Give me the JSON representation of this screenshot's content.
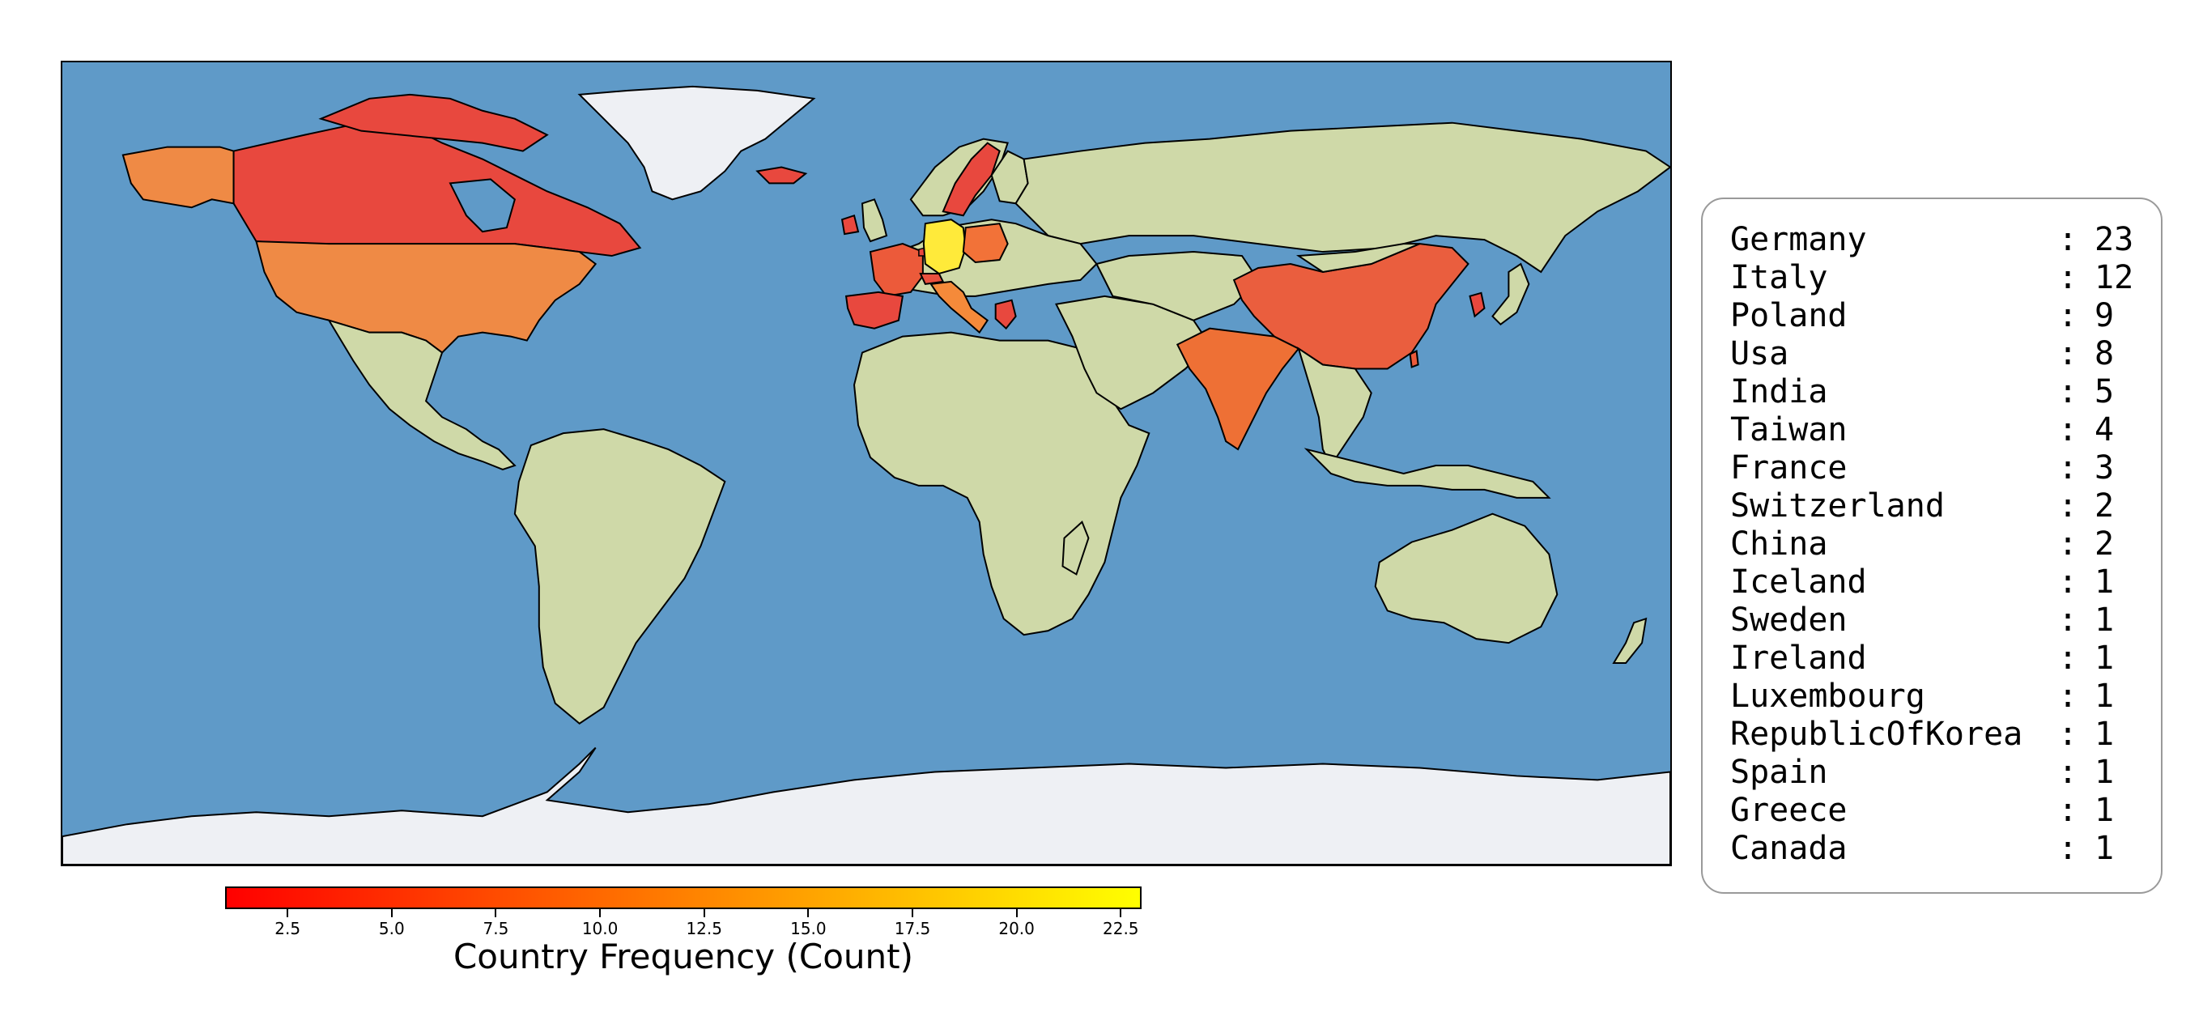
{
  "map": {
    "colors": {
      "ocean": "#5f9ac8",
      "land": "#cfd9a8",
      "ice": "#eef0f4",
      "outline": "#000000"
    },
    "highlighted_countries": [
      {
        "name": "Germany",
        "count": 23,
        "color": "#ffea3a"
      },
      {
        "name": "Italy",
        "count": 12,
        "color": "#f58a3a"
      },
      {
        "name": "Poland",
        "count": 9,
        "color": "#f27238"
      },
      {
        "name": "Usa",
        "count": 8,
        "color": "#ef8a45"
      },
      {
        "name": "India",
        "count": 5,
        "color": "#ee7035"
      },
      {
        "name": "Taiwan",
        "count": 4,
        "color": "#ec5a3a"
      },
      {
        "name": "France",
        "count": 3,
        "color": "#ec5a3a"
      },
      {
        "name": "Switzerland",
        "count": 2,
        "color": "#ea503e"
      },
      {
        "name": "China",
        "count": 2,
        "color": "#ea5e3e"
      },
      {
        "name": "Iceland",
        "count": 1,
        "color": "#e8483e"
      },
      {
        "name": "Sweden",
        "count": 1,
        "color": "#e8483e"
      },
      {
        "name": "Ireland",
        "count": 1,
        "color": "#e8483e"
      },
      {
        "name": "Luxembourg",
        "count": 1,
        "color": "#e8483e"
      },
      {
        "name": "RepublicOfKorea",
        "count": 1,
        "color": "#e8483e"
      },
      {
        "name": "Spain",
        "count": 1,
        "color": "#e8483e"
      },
      {
        "name": "Greece",
        "count": 1,
        "color": "#e8483e"
      },
      {
        "name": "Canada",
        "count": 1,
        "color": "#e8483e"
      }
    ]
  },
  "legend": {
    "rows": [
      {
        "name": "Germany",
        "sep": ":",
        "value": "23"
      },
      {
        "name": "Italy",
        "sep": ":",
        "value": "12"
      },
      {
        "name": "Poland",
        "sep": ":",
        "value": "9"
      },
      {
        "name": "Usa",
        "sep": ":",
        "value": "8"
      },
      {
        "name": "India",
        "sep": ":",
        "value": "5"
      },
      {
        "name": "Taiwan",
        "sep": ":",
        "value": "4"
      },
      {
        "name": "France",
        "sep": ":",
        "value": "3"
      },
      {
        "name": "Switzerland",
        "sep": ":",
        "value": "2"
      },
      {
        "name": "China",
        "sep": ":",
        "value": "2"
      },
      {
        "name": "Iceland",
        "sep": ":",
        "value": "1"
      },
      {
        "name": "Sweden",
        "sep": ":",
        "value": "1"
      },
      {
        "name": "Ireland",
        "sep": ":",
        "value": "1"
      },
      {
        "name": "Luxembourg",
        "sep": ":",
        "value": "1"
      },
      {
        "name": "RepublicOfKorea",
        "sep": ":",
        "value": "1"
      },
      {
        "name": "Spain",
        "sep": ":",
        "value": "1"
      },
      {
        "name": "Greece",
        "sep": ":",
        "value": "1"
      },
      {
        "name": "Canada",
        "sep": ":",
        "value": "1"
      }
    ]
  },
  "colorbar": {
    "title": "Country Frequency (Count)",
    "min": 1,
    "max": 23,
    "colors": [
      "#ff0000",
      "#ff8000",
      "#ffff00"
    ],
    "ticks": [
      "2.5",
      "5.0",
      "7.5",
      "10.0",
      "12.5",
      "15.0",
      "17.5",
      "20.0",
      "22.5"
    ],
    "tick_values": [
      2.5,
      5.0,
      7.5,
      10.0,
      12.5,
      15.0,
      17.5,
      20.0,
      22.5
    ]
  }
}
